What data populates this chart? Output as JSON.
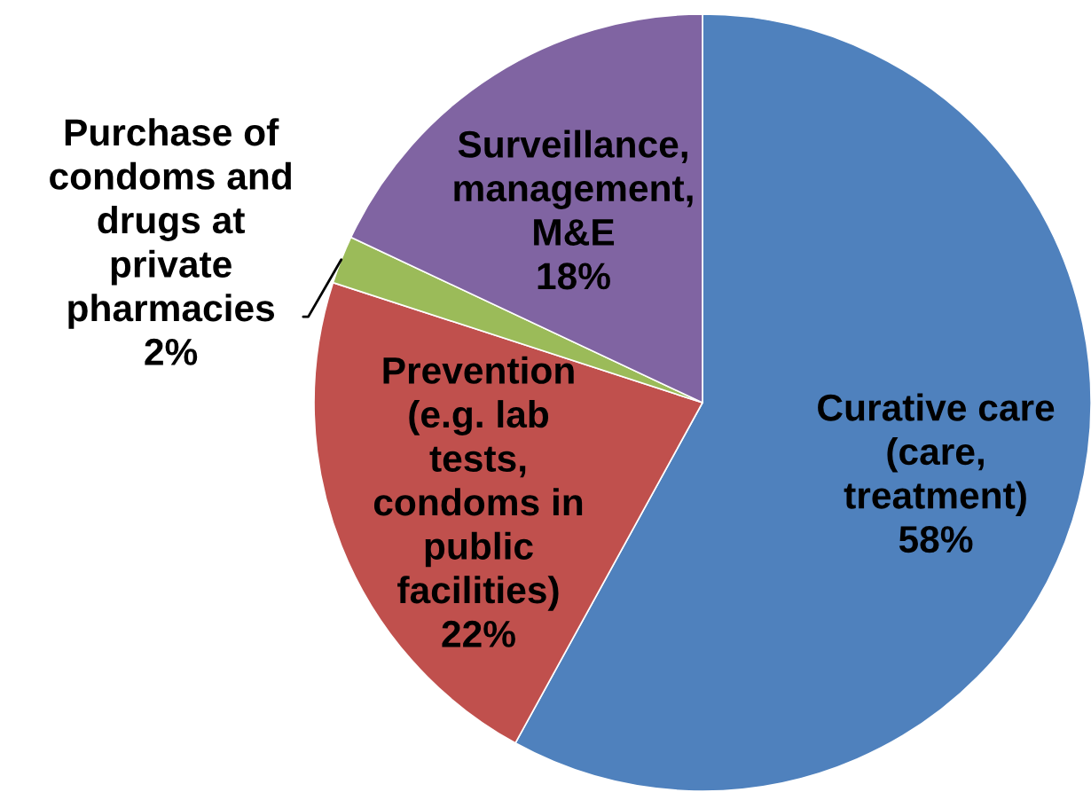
{
  "chart_data": {
    "type": "pie",
    "categories": [
      "Curative care\n(care,\ntreatment)",
      "Prevention\n(e.g. lab\ntests,\ncondoms in\npublic\nfacilities)",
      "Purchase of\ncondoms and\ndrugs at\nprivate\npharmacies",
      "Surveillance,\nmanagement,\nM&E"
    ],
    "values": [
      58,
      22,
      2,
      18
    ],
    "colors": [
      "#4f81bd",
      "#c0504d",
      "#9bbb59",
      "#8064a2"
    ],
    "value_labels": [
      "58%",
      "22%",
      "2%",
      "18%"
    ]
  }
}
